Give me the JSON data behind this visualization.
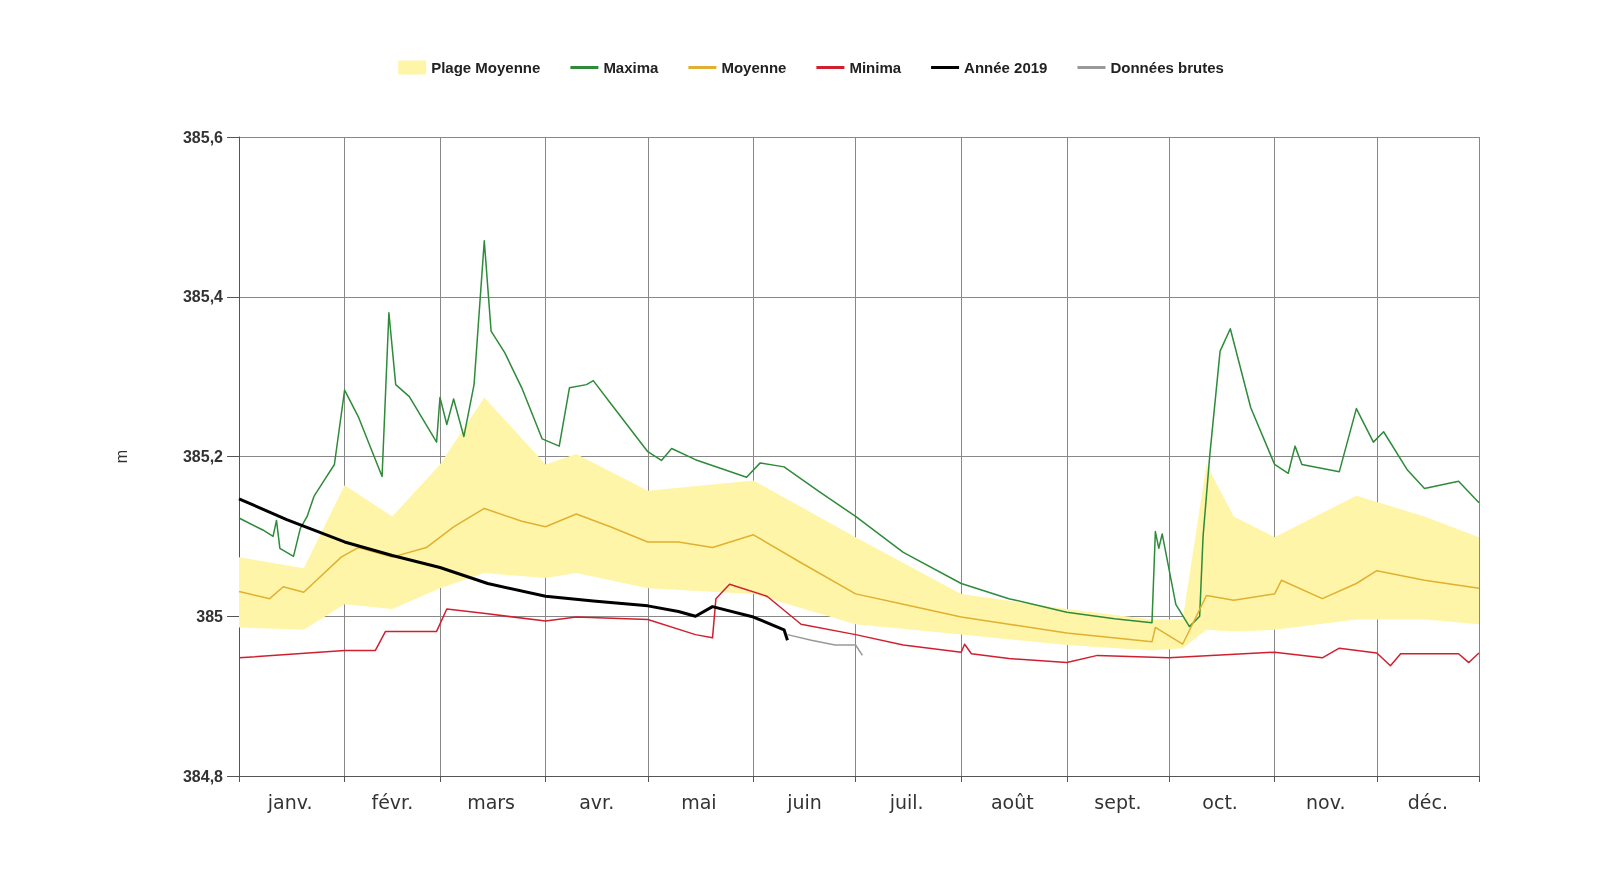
{
  "chart_data": {
    "type": "line",
    "ylabel": "m",
    "legend": "top",
    "grid": true,
    "xlim": [
      "--01-01",
      "--12-31"
    ],
    "xticks": [
      {
        "value": "--01-01",
        "label": null
      },
      {
        "value": "--01-16",
        "label": "janv."
      },
      {
        "value": "--02-01",
        "label": null
      },
      {
        "value": "--02-15",
        "label": "févr."
      },
      {
        "value": "--03-01",
        "label": null
      },
      {
        "value": "--03-16",
        "label": "mars"
      },
      {
        "value": "--04-01",
        "label": null
      },
      {
        "value": "--04-16",
        "label": "avr."
      },
      {
        "value": "--05-01",
        "label": null
      },
      {
        "value": "--05-16",
        "label": "mai"
      },
      {
        "value": "--06-01",
        "label": null
      },
      {
        "value": "--06-16",
        "label": "juin"
      },
      {
        "value": "--07-01",
        "label": null
      },
      {
        "value": "--07-16",
        "label": "juil."
      },
      {
        "value": "--08-01",
        "label": null
      },
      {
        "value": "--08-16",
        "label": "août"
      },
      {
        "value": "--09-01",
        "label": null
      },
      {
        "value": "--09-16",
        "label": "sept."
      },
      {
        "value": "--10-01",
        "label": null
      },
      {
        "value": "--10-16",
        "label": "oct."
      },
      {
        "value": "--11-01",
        "label": null
      },
      {
        "value": "--11-16",
        "label": "nov."
      },
      {
        "value": "--12-01",
        "label": null
      },
      {
        "value": "--12-16",
        "label": "déc."
      },
      {
        "value": "--12-31",
        "label": null
      }
    ],
    "ylim": [
      384.8,
      385.6
    ],
    "yticks": [
      {
        "value": 384.8,
        "label": "384,8"
      },
      385,
      {
        "value": 385.2,
        "label": "385,2"
      },
      {
        "value": 385.4,
        "label": "385,4"
      },
      {
        "value": 385.6,
        "label": "385,6"
      }
    ],
    "series": [
      {
        "name": "Plage Moyenne",
        "type": "area",
        "color": "#fff5a8",
        "x": [
          "--01-01",
          "--01-20",
          "--02-01",
          "--02-15",
          "--03-01",
          "--03-14",
          "--04-01",
          "--04-10",
          "--05-01",
          "--06-01",
          "--07-01",
          "--08-01",
          "--09-01",
          "--09-26",
          "--10-05",
          "--10-12",
          "--10-20",
          "--11-01",
          "--11-25",
          "--12-15",
          "--12-31"
        ],
        "values": [
          null,
          null,
          null,
          null,
          null,
          null,
          null,
          null,
          null,
          null,
          null,
          null,
          null,
          null,
          null,
          null,
          null,
          null,
          null,
          null,
          null
        ],
        "lower": [
          384.986,
          384.983,
          385.015,
          385.009,
          385.035,
          385.054,
          385.048,
          385.054,
          385.035,
          385.028,
          384.99,
          384.977,
          384.964,
          384.957,
          384.96,
          384.983,
          384.981,
          384.983,
          384.996,
          384.996,
          384.99
        ],
        "upper": [
          385.074,
          385.06,
          385.164,
          385.125,
          385.19,
          385.274,
          385.19,
          385.203,
          385.157,
          385.17,
          385.099,
          385.028,
          385.009,
          384.996,
          384.996,
          385.19,
          385.125,
          385.099,
          385.151,
          385.125,
          385.099
        ]
      },
      {
        "name": "Maxima",
        "color": "#2e8b3a",
        "x": [
          "--01-01",
          "--01-08",
          "--01-11",
          "--01-12",
          "--01-13",
          "--01-17",
          "--01-19",
          "--01-21",
          "--01-23",
          "--01-26",
          "--01-29",
          "--02-01",
          "--02-05",
          "--02-12",
          "--02-14",
          "--02-16",
          "--02-20",
          "--02-28",
          "--03-01",
          "--03-03",
          "--03-05",
          "--03-08",
          "--03-11",
          "--03-14",
          "--03-16",
          "--03-20",
          "--03-25",
          "--03-31",
          "--04-05",
          "--04-08",
          "--04-13",
          "--04-15",
          "--04-20",
          "--05-01",
          "--05-05",
          "--05-08",
          "--05-15",
          "--05-30",
          "--06-03",
          "--06-10",
          "--06-20",
          "--07-01",
          "--07-15",
          "--08-01",
          "--08-15",
          "--09-01",
          "--09-15",
          "--09-26",
          "--09-27",
          "--09-28",
          "--09-29",
          "--10-03",
          "--10-07",
          "--10-10",
          "--10-11",
          "--10-13",
          "--10-16",
          "--10-19",
          "--10-25",
          "--11-01",
          "--11-05",
          "--11-07",
          "--11-09",
          "--11-20",
          "--11-25",
          "--11-30",
          "--12-03",
          "--12-10",
          "--12-15",
          "--12-25",
          "--12-31"
        ],
        "values": [
          385.123,
          385.108,
          385.1,
          385.12,
          385.085,
          385.075,
          385.11,
          385.125,
          385.15,
          385.17,
          385.19,
          385.283,
          385.25,
          385.175,
          385.38,
          385.29,
          385.275,
          385.218,
          385.274,
          385.24,
          385.272,
          385.225,
          385.29,
          385.47,
          385.357,
          385.33,
          385.286,
          385.222,
          385.213,
          385.286,
          385.29,
          385.295,
          385.267,
          385.206,
          385.195,
          385.21,
          385.196,
          385.174,
          385.192,
          385.187,
          385.157,
          385.125,
          385.08,
          385.041,
          385.022,
          385.005,
          384.997,
          384.992,
          385.106,
          385.085,
          385.103,
          385.015,
          384.987,
          385.0,
          385.1,
          385.203,
          385.332,
          385.36,
          385.261,
          385.19,
          385.179,
          385.213,
          385.19,
          385.181,
          385.26,
          385.218,
          385.231,
          385.183,
          385.16,
          385.169,
          385.142
        ]
      },
      {
        "name": "Moyenne",
        "color": "#e0b030",
        "x": [
          "--01-01",
          "--01-10",
          "--01-14",
          "--01-20",
          "--01-31",
          "--02-05",
          "--02-15",
          "--02-25",
          "--03-05",
          "--03-14",
          "--03-25",
          "--04-01",
          "--04-10",
          "--04-20",
          "--05-01",
          "--05-10",
          "--05-20",
          "--06-01",
          "--06-15",
          "--07-01",
          "--07-15",
          "--08-01",
          "--08-15",
          "--09-01",
          "--09-26",
          "--09-27",
          "--10-05",
          "--10-12",
          "--10-20",
          "--11-01",
          "--11-03",
          "--11-15",
          "--11-25",
          "--12-01",
          "--12-15",
          "--12-31"
        ],
        "values": [
          385.031,
          385.022,
          385.037,
          385.03,
          385.074,
          385.086,
          385.074,
          385.086,
          385.112,
          385.135,
          385.119,
          385.112,
          385.128,
          385.112,
          385.093,
          385.093,
          385.086,
          385.102,
          385.067,
          385.028,
          385.015,
          384.999,
          384.99,
          384.979,
          384.968,
          384.986,
          384.965,
          385.026,
          385.02,
          385.028,
          385.045,
          385.022,
          385.041,
          385.057,
          385.045,
          385.035
        ]
      },
      {
        "name": "Minima",
        "color": "#d02030",
        "x": [
          "--01-01",
          "--02-01",
          "--02-10",
          "--02-13",
          "--02-28",
          "--03-03",
          "--03-15",
          "--04-01",
          "--04-10",
          "--05-01",
          "--05-15",
          "--05-20",
          "--05-21",
          "--05-25",
          "--06-05",
          "--06-15",
          "--07-01",
          "--07-15",
          "--08-01",
          "--08-02",
          "--08-04",
          "--08-15",
          "--09-01",
          "--09-10",
          "--10-01",
          "--11-01",
          "--11-15",
          "--11-20",
          "--12-01",
          "--12-05",
          "--12-08",
          "--12-25",
          "--12-28",
          "--12-31"
        ],
        "values": [
          384.948,
          384.957,
          384.957,
          384.981,
          384.981,
          385.009,
          385.003,
          384.994,
          384.999,
          384.996,
          384.977,
          384.973,
          385.022,
          385.04,
          385.025,
          384.99,
          384.977,
          384.964,
          384.955,
          384.965,
          384.953,
          384.947,
          384.942,
          384.951,
          384.948,
          384.955,
          384.948,
          384.96,
          384.954,
          384.938,
          384.953,
          384.953,
          384.942,
          384.954
        ]
      },
      {
        "name": "Année 2019",
        "color": "#000000",
        "x": [
          "--01-01",
          "--01-15",
          "--02-01",
          "--02-15",
          "--03-01",
          "--03-15",
          "--04-01",
          "--04-15",
          "--05-01",
          "--05-10",
          "--05-15",
          "--05-20",
          "--06-01",
          "--06-10",
          "--06-11"
        ],
        "values": [
          385.147,
          385.121,
          385.093,
          385.076,
          385.061,
          385.041,
          385.025,
          385.019,
          385.013,
          385.006,
          385.0,
          385.012,
          384.999,
          384.983,
          384.97
        ]
      },
      {
        "name": "Données brutes",
        "color": "#999999",
        "x": [
          "--06-11",
          "--06-18",
          "--06-25",
          "--07-01",
          "--07-03"
        ],
        "values": [
          384.977,
          384.97,
          384.964,
          384.964,
          384.951
        ]
      }
    ]
  }
}
